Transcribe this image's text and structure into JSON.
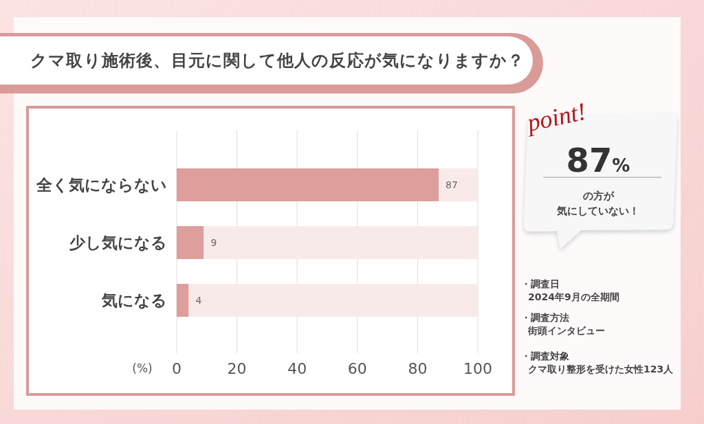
{
  "chart_data": {
    "type": "bar",
    "orientation": "horizontal",
    "stacked": true,
    "title": "クマ取り施術後、目元に関して他人の反応が気になりますか？",
    "xlabel": "(%)",
    "categories": [
      "全く気にならない",
      "少し気になる",
      "気になる"
    ],
    "series": [
      {
        "color": "#dd9e9c",
        "values": [
          87,
          9,
          4
        ],
        "value_labels": [
          "87",
          "9",
          "4"
        ]
      },
      {
        "color": "#f9eaea",
        "values": [
          13,
          91,
          96
        ]
      }
    ],
    "xlim": [
      0,
      100
    ],
    "xticks": [
      0,
      20,
      40,
      60,
      80,
      100
    ],
    "grid": "x",
    "annotations": [
      "point!",
      "87%",
      "の方が",
      "気にしていない！",
      "・調査日",
      "2024年9月の全期間",
      "・調査方法",
      "街頭インタビュー",
      "・調査対象",
      "クマ取り整形を受けた女性123人"
    ]
  }
}
